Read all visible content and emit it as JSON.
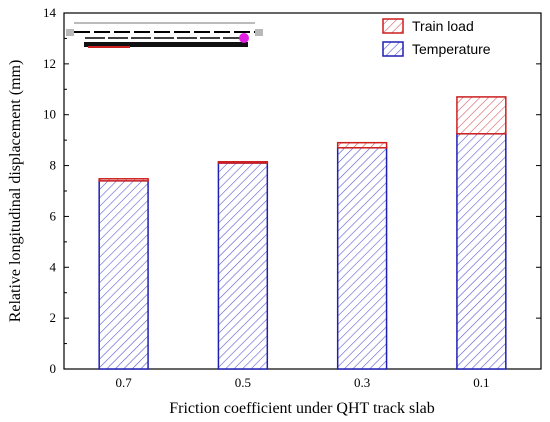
{
  "chart_data": {
    "type": "bar",
    "stacked": true,
    "categories": [
      "0.7",
      "0.5",
      "0.3",
      "0.1"
    ],
    "series": [
      {
        "name": "Temperature",
        "values": [
          7.4,
          8.1,
          8.7,
          9.25
        ],
        "color": "#1f1fb4",
        "hatch": "diagonal"
      },
      {
        "name": "Train load",
        "values": [
          0.08,
          0.05,
          0.2,
          1.45
        ],
        "color": "#cc1f1f",
        "hatch": "diagonal"
      }
    ],
    "xlabel": "Friction coefficient under QHT track slab",
    "ylabel": "Relative longitudinal displacement (mm)",
    "ylim": [
      0,
      14
    ],
    "yticks": [
      "0",
      "2",
      "4",
      "6",
      "8",
      "10",
      "12",
      "14"
    ],
    "legend_position": "top-right",
    "grid": false
  }
}
